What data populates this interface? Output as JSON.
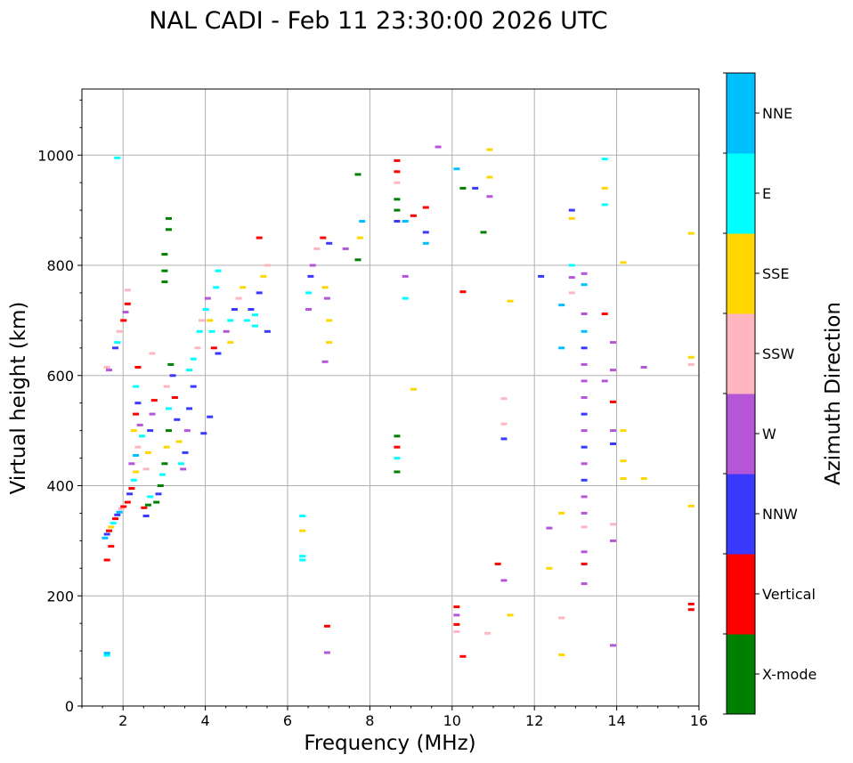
{
  "chart_data": {
    "type": "scatter",
    "title": "NAL CADI - Feb 11 23:30:00 2026 UTC",
    "xlabel": "Frequency (MHz)",
    "ylabel": "Virtual height (km)",
    "xlim": [
      1,
      16
    ],
    "ylim": [
      0,
      1120
    ],
    "xticks": [
      2,
      4,
      6,
      8,
      10,
      12,
      14,
      16
    ],
    "xtick_labels": [
      "2",
      "4",
      "6",
      "8",
      "10",
      "12",
      "14",
      "16"
    ],
    "yticks": [
      0,
      200,
      400,
      600,
      800,
      1000
    ],
    "ytick_labels": [
      "0",
      "200",
      "400",
      "600",
      "800",
      "1000"
    ],
    "grid": true,
    "colorbar": {
      "label": "Azimuth Direction",
      "categories": [
        "X-mode",
        "Vertical",
        "NNW",
        "W",
        "SSW",
        "SSE",
        "E",
        "NNE"
      ],
      "colors": [
        "#008000",
        "#ff0000",
        "#3a3aff",
        "#b556d8",
        "#ffb6c1",
        "#ffd700",
        "#00ffff",
        "#00bfff"
      ]
    },
    "points": [
      {
        "x": 1.55,
        "y": 305,
        "d": 7
      },
      {
        "x": 1.6,
        "y": 312,
        "d": 2
      },
      {
        "x": 1.65,
        "y": 318,
        "d": 1
      },
      {
        "x": 1.7,
        "y": 325,
        "d": 5
      },
      {
        "x": 1.75,
        "y": 332,
        "d": 6
      },
      {
        "x": 1.8,
        "y": 340,
        "d": 1
      },
      {
        "x": 1.85,
        "y": 347,
        "d": 2
      },
      {
        "x": 1.9,
        "y": 352,
        "d": 7
      },
      {
        "x": 1.95,
        "y": 358,
        "d": 4
      },
      {
        "x": 2.0,
        "y": 362,
        "d": 1
      },
      {
        "x": 1.7,
        "y": 290,
        "d": 1
      },
      {
        "x": 1.6,
        "y": 265,
        "d": 1
      },
      {
        "x": 1.6,
        "y": 92,
        "d": 6
      },
      {
        "x": 1.6,
        "y": 96,
        "d": 7
      },
      {
        "x": 1.6,
        "y": 615,
        "d": 4
      },
      {
        "x": 1.65,
        "y": 610,
        "d": 3
      },
      {
        "x": 1.8,
        "y": 650,
        "d": 2
      },
      {
        "x": 1.85,
        "y": 660,
        "d": 6
      },
      {
        "x": 1.9,
        "y": 680,
        "d": 4
      },
      {
        "x": 2.0,
        "y": 700,
        "d": 1
      },
      {
        "x": 2.05,
        "y": 715,
        "d": 3
      },
      {
        "x": 2.1,
        "y": 730,
        "d": 1
      },
      {
        "x": 2.1,
        "y": 755,
        "d": 4
      },
      {
        "x": 1.85,
        "y": 995,
        "d": 6
      },
      {
        "x": 2.1,
        "y": 370,
        "d": 1
      },
      {
        "x": 2.15,
        "y": 385,
        "d": 2
      },
      {
        "x": 2.2,
        "y": 395,
        "d": 1
      },
      {
        "x": 2.25,
        "y": 410,
        "d": 6
      },
      {
        "x": 2.3,
        "y": 425,
        "d": 5
      },
      {
        "x": 2.2,
        "y": 440,
        "d": 3
      },
      {
        "x": 2.3,
        "y": 455,
        "d": 7
      },
      {
        "x": 2.35,
        "y": 470,
        "d": 4
      },
      {
        "x": 2.25,
        "y": 500,
        "d": 5
      },
      {
        "x": 2.3,
        "y": 530,
        "d": 1
      },
      {
        "x": 2.35,
        "y": 550,
        "d": 2
      },
      {
        "x": 2.3,
        "y": 580,
        "d": 6
      },
      {
        "x": 2.35,
        "y": 615,
        "d": 1
      },
      {
        "x": 2.4,
        "y": 510,
        "d": 3
      },
      {
        "x": 2.45,
        "y": 490,
        "d": 6
      },
      {
        "x": 2.5,
        "y": 360,
        "d": 1
      },
      {
        "x": 2.55,
        "y": 345,
        "d": 2
      },
      {
        "x": 2.6,
        "y": 365,
        "d": 0
      },
      {
        "x": 2.65,
        "y": 380,
        "d": 6
      },
      {
        "x": 2.55,
        "y": 430,
        "d": 4
      },
      {
        "x": 2.6,
        "y": 460,
        "d": 5
      },
      {
        "x": 2.65,
        "y": 500,
        "d": 2
      },
      {
        "x": 2.7,
        "y": 530,
        "d": 3
      },
      {
        "x": 2.75,
        "y": 555,
        "d": 1
      },
      {
        "x": 2.7,
        "y": 640,
        "d": 4
      },
      {
        "x": 2.8,
        "y": 370,
        "d": 0
      },
      {
        "x": 2.85,
        "y": 385,
        "d": 2
      },
      {
        "x": 2.9,
        "y": 400,
        "d": 0
      },
      {
        "x": 2.95,
        "y": 420,
        "d": 6
      },
      {
        "x": 3.0,
        "y": 440,
        "d": 0
      },
      {
        "x": 3.05,
        "y": 470,
        "d": 5
      },
      {
        "x": 3.1,
        "y": 500,
        "d": 0
      },
      {
        "x": 3.1,
        "y": 540,
        "d": 6
      },
      {
        "x": 3.05,
        "y": 580,
        "d": 4
      },
      {
        "x": 3.15,
        "y": 620,
        "d": 0
      },
      {
        "x": 3.2,
        "y": 600,
        "d": 2
      },
      {
        "x": 3.25,
        "y": 560,
        "d": 1
      },
      {
        "x": 3.3,
        "y": 520,
        "d": 2
      },
      {
        "x": 3.35,
        "y": 480,
        "d": 5
      },
      {
        "x": 3.4,
        "y": 440,
        "d": 6
      },
      {
        "x": 3.45,
        "y": 430,
        "d": 3
      },
      {
        "x": 3.5,
        "y": 460,
        "d": 2
      },
      {
        "x": 3.55,
        "y": 500,
        "d": 3
      },
      {
        "x": 3.6,
        "y": 540,
        "d": 2
      },
      {
        "x": 3.7,
        "y": 580,
        "d": 2
      },
      {
        "x": 3.0,
        "y": 770,
        "d": 0
      },
      {
        "x": 3.0,
        "y": 790,
        "d": 0
      },
      {
        "x": 3.0,
        "y": 820,
        "d": 0
      },
      {
        "x": 3.1,
        "y": 865,
        "d": 0
      },
      {
        "x": 3.1,
        "y": 885,
        "d": 0
      },
      {
        "x": 3.6,
        "y": 610,
        "d": 6
      },
      {
        "x": 3.7,
        "y": 630,
        "d": 6
      },
      {
        "x": 3.8,
        "y": 650,
        "d": 4
      },
      {
        "x": 3.85,
        "y": 680,
        "d": 6
      },
      {
        "x": 3.9,
        "y": 700,
        "d": 4
      },
      {
        "x": 4.0,
        "y": 720,
        "d": 6
      },
      {
        "x": 4.05,
        "y": 740,
        "d": 3
      },
      {
        "x": 4.1,
        "y": 700,
        "d": 5
      },
      {
        "x": 4.15,
        "y": 680,
        "d": 6
      },
      {
        "x": 4.2,
        "y": 650,
        "d": 1
      },
      {
        "x": 4.25,
        "y": 760,
        "d": 6
      },
      {
        "x": 4.3,
        "y": 790,
        "d": 6
      },
      {
        "x": 4.3,
        "y": 640,
        "d": 2
      },
      {
        "x": 4.1,
        "y": 525,
        "d": 2
      },
      {
        "x": 3.95,
        "y": 495,
        "d": 2
      },
      {
        "x": 4.5,
        "y": 680,
        "d": 3
      },
      {
        "x": 4.6,
        "y": 700,
        "d": 6
      },
      {
        "x": 4.7,
        "y": 720,
        "d": 2
      },
      {
        "x": 4.8,
        "y": 740,
        "d": 4
      },
      {
        "x": 4.9,
        "y": 760,
        "d": 5
      },
      {
        "x": 5.0,
        "y": 700,
        "d": 6
      },
      {
        "x": 5.1,
        "y": 720,
        "d": 2
      },
      {
        "x": 5.2,
        "y": 690,
        "d": 6
      },
      {
        "x": 5.3,
        "y": 750,
        "d": 2
      },
      {
        "x": 5.4,
        "y": 780,
        "d": 5
      },
      {
        "x": 5.5,
        "y": 800,
        "d": 4
      },
      {
        "x": 5.5,
        "y": 680,
        "d": 2
      },
      {
        "x": 5.3,
        "y": 850,
        "d": 1
      },
      {
        "x": 4.6,
        "y": 660,
        "d": 5
      },
      {
        "x": 5.2,
        "y": 710,
        "d": 6
      },
      {
        "x": 6.35,
        "y": 265,
        "d": 6
      },
      {
        "x": 6.35,
        "y": 272,
        "d": 6
      },
      {
        "x": 6.35,
        "y": 318,
        "d": 5
      },
      {
        "x": 6.35,
        "y": 345,
        "d": 6
      },
      {
        "x": 6.5,
        "y": 720,
        "d": 3
      },
      {
        "x": 6.5,
        "y": 750,
        "d": 6
      },
      {
        "x": 6.55,
        "y": 780,
        "d": 2
      },
      {
        "x": 6.6,
        "y": 800,
        "d": 3
      },
      {
        "x": 6.7,
        "y": 830,
        "d": 4
      },
      {
        "x": 6.85,
        "y": 850,
        "d": 1
      },
      {
        "x": 6.9,
        "y": 760,
        "d": 5
      },
      {
        "x": 6.95,
        "y": 740,
        "d": 3
      },
      {
        "x": 7.0,
        "y": 700,
        "d": 5
      },
      {
        "x": 7.0,
        "y": 660,
        "d": 5
      },
      {
        "x": 6.95,
        "y": 145,
        "d": 1
      },
      {
        "x": 6.95,
        "y": 97,
        "d": 3
      },
      {
        "x": 6.9,
        "y": 625,
        "d": 3
      },
      {
        "x": 7.0,
        "y": 840,
        "d": 2
      },
      {
        "x": 7.4,
        "y": 830,
        "d": 3
      },
      {
        "x": 7.7,
        "y": 810,
        "d": 0
      },
      {
        "x": 7.75,
        "y": 850,
        "d": 5
      },
      {
        "x": 7.8,
        "y": 880,
        "d": 7
      },
      {
        "x": 7.7,
        "y": 965,
        "d": 0
      },
      {
        "x": 8.65,
        "y": 990,
        "d": 1
      },
      {
        "x": 8.65,
        "y": 970,
        "d": 1
      },
      {
        "x": 8.65,
        "y": 950,
        "d": 4
      },
      {
        "x": 8.65,
        "y": 920,
        "d": 0
      },
      {
        "x": 8.65,
        "y": 900,
        "d": 0
      },
      {
        "x": 8.65,
        "y": 880,
        "d": 2
      },
      {
        "x": 8.85,
        "y": 880,
        "d": 7
      },
      {
        "x": 9.05,
        "y": 890,
        "d": 1
      },
      {
        "x": 9.35,
        "y": 905,
        "d": 1
      },
      {
        "x": 9.65,
        "y": 1015,
        "d": 3
      },
      {
        "x": 8.65,
        "y": 490,
        "d": 0
      },
      {
        "x": 8.65,
        "y": 470,
        "d": 1
      },
      {
        "x": 8.65,
        "y": 450,
        "d": 6
      },
      {
        "x": 8.65,
        "y": 425,
        "d": 0
      },
      {
        "x": 8.85,
        "y": 780,
        "d": 3
      },
      {
        "x": 8.85,
        "y": 740,
        "d": 6
      },
      {
        "x": 9.05,
        "y": 575,
        "d": 5
      },
      {
        "x": 9.35,
        "y": 860,
        "d": 2
      },
      {
        "x": 9.35,
        "y": 840,
        "d": 7
      },
      {
        "x": 10.1,
        "y": 975,
        "d": 7
      },
      {
        "x": 10.25,
        "y": 940,
        "d": 0
      },
      {
        "x": 10.55,
        "y": 940,
        "d": 2
      },
      {
        "x": 10.75,
        "y": 860,
        "d": 0
      },
      {
        "x": 10.9,
        "y": 1010,
        "d": 5
      },
      {
        "x": 10.9,
        "y": 960,
        "d": 5
      },
      {
        "x": 10.9,
        "y": 925,
        "d": 3
      },
      {
        "x": 10.25,
        "y": 752,
        "d": 1
      },
      {
        "x": 10.1,
        "y": 180,
        "d": 1
      },
      {
        "x": 10.1,
        "y": 165,
        "d": 3
      },
      {
        "x": 10.1,
        "y": 148,
        "d": 1
      },
      {
        "x": 10.1,
        "y": 135,
        "d": 4
      },
      {
        "x": 10.25,
        "y": 90,
        "d": 1
      },
      {
        "x": 10.85,
        "y": 132,
        "d": 4
      },
      {
        "x": 11.1,
        "y": 258,
        "d": 1
      },
      {
        "x": 11.25,
        "y": 228,
        "d": 3
      },
      {
        "x": 11.25,
        "y": 485,
        "d": 2
      },
      {
        "x": 11.25,
        "y": 512,
        "d": 4
      },
      {
        "x": 11.25,
        "y": 558,
        "d": 4
      },
      {
        "x": 11.4,
        "y": 735,
        "d": 5
      },
      {
        "x": 11.4,
        "y": 165,
        "d": 5
      },
      {
        "x": 12.15,
        "y": 780,
        "d": 2
      },
      {
        "x": 12.35,
        "y": 250,
        "d": 5
      },
      {
        "x": 12.35,
        "y": 323,
        "d": 3
      },
      {
        "x": 12.65,
        "y": 350,
        "d": 5
      },
      {
        "x": 12.65,
        "y": 160,
        "d": 4
      },
      {
        "x": 12.65,
        "y": 93,
        "d": 5
      },
      {
        "x": 12.65,
        "y": 650,
        "d": 7
      },
      {
        "x": 12.65,
        "y": 728,
        "d": 7
      },
      {
        "x": 12.9,
        "y": 885,
        "d": 5
      },
      {
        "x": 12.9,
        "y": 900,
        "d": 2
      },
      {
        "x": 12.9,
        "y": 800,
        "d": 6
      },
      {
        "x": 12.9,
        "y": 778,
        "d": 3
      },
      {
        "x": 12.9,
        "y": 750,
        "d": 4
      },
      {
        "x": 13.2,
        "y": 222,
        "d": 3
      },
      {
        "x": 13.2,
        "y": 258,
        "d": 1
      },
      {
        "x": 13.2,
        "y": 280,
        "d": 3
      },
      {
        "x": 13.2,
        "y": 325,
        "d": 4
      },
      {
        "x": 13.2,
        "y": 350,
        "d": 3
      },
      {
        "x": 13.2,
        "y": 380,
        "d": 3
      },
      {
        "x": 13.2,
        "y": 410,
        "d": 2
      },
      {
        "x": 13.2,
        "y": 440,
        "d": 3
      },
      {
        "x": 13.2,
        "y": 470,
        "d": 2
      },
      {
        "x": 13.2,
        "y": 500,
        "d": 3
      },
      {
        "x": 13.2,
        "y": 530,
        "d": 2
      },
      {
        "x": 13.2,
        "y": 560,
        "d": 3
      },
      {
        "x": 13.2,
        "y": 590,
        "d": 3
      },
      {
        "x": 13.2,
        "y": 620,
        "d": 3
      },
      {
        "x": 13.2,
        "y": 650,
        "d": 2
      },
      {
        "x": 13.2,
        "y": 680,
        "d": 7
      },
      {
        "x": 13.2,
        "y": 712,
        "d": 3
      },
      {
        "x": 13.2,
        "y": 765,
        "d": 7
      },
      {
        "x": 13.2,
        "y": 785,
        "d": 3
      },
      {
        "x": 13.7,
        "y": 712,
        "d": 1
      },
      {
        "x": 13.7,
        "y": 590,
        "d": 3
      },
      {
        "x": 13.7,
        "y": 910,
        "d": 6
      },
      {
        "x": 13.7,
        "y": 940,
        "d": 5
      },
      {
        "x": 13.7,
        "y": 993,
        "d": 6
      },
      {
        "x": 13.9,
        "y": 660,
        "d": 3
      },
      {
        "x": 13.9,
        "y": 610,
        "d": 3
      },
      {
        "x": 13.9,
        "y": 552,
        "d": 1
      },
      {
        "x": 13.9,
        "y": 500,
        "d": 3
      },
      {
        "x": 13.9,
        "y": 476,
        "d": 2
      },
      {
        "x": 13.9,
        "y": 330,
        "d": 4
      },
      {
        "x": 13.9,
        "y": 300,
        "d": 3
      },
      {
        "x": 13.9,
        "y": 110,
        "d": 3
      },
      {
        "x": 14.15,
        "y": 805,
        "d": 5
      },
      {
        "x": 14.15,
        "y": 500,
        "d": 5
      },
      {
        "x": 14.15,
        "y": 445,
        "d": 5
      },
      {
        "x": 14.15,
        "y": 413,
        "d": 5
      },
      {
        "x": 14.65,
        "y": 413,
        "d": 5
      },
      {
        "x": 14.65,
        "y": 615,
        "d": 3
      },
      {
        "x": 15.8,
        "y": 858,
        "d": 5
      },
      {
        "x": 15.8,
        "y": 633,
        "d": 5
      },
      {
        "x": 15.8,
        "y": 620,
        "d": 4
      },
      {
        "x": 15.8,
        "y": 363,
        "d": 5
      },
      {
        "x": 15.8,
        "y": 185,
        "d": 1
      },
      {
        "x": 15.8,
        "y": 175,
        "d": 1
      }
    ]
  }
}
